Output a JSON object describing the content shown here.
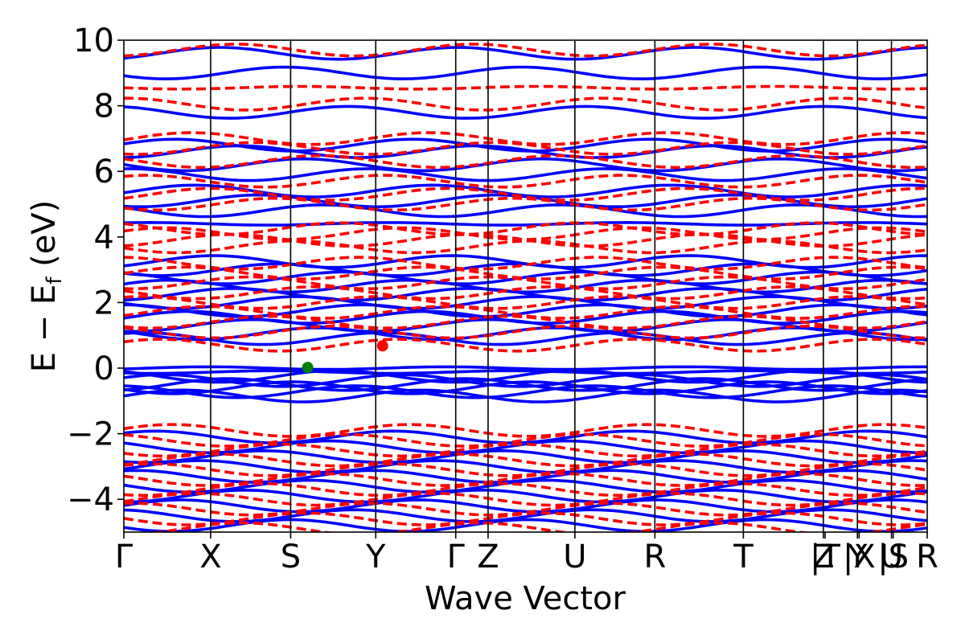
{
  "chart_data": {
    "type": "line",
    "title": "",
    "xlabel": "Wave Vector",
    "ylabel_main": "E − E",
    "ylabel_sub": "f",
    "ylabel_unit": " (eV)",
    "ylim": [
      -5,
      10
    ],
    "yticks": [
      {
        "value": -4,
        "label": "−4"
      },
      {
        "value": -2,
        "label": "−2"
      },
      {
        "value": 0,
        "label": "0"
      },
      {
        "value": 2,
        "label": "2"
      },
      {
        "value": 4,
        "label": "4"
      },
      {
        "value": 6,
        "label": "6"
      },
      {
        "value": 8,
        "label": "8"
      },
      {
        "value": 10,
        "label": "10"
      }
    ],
    "kpath_range": [
      0,
      23.6
    ],
    "high_symmetry_points": [
      {
        "label": "Γ",
        "k": 0.0
      },
      {
        "label": "X",
        "k": 2.55
      },
      {
        "label": "S",
        "k": 4.9
      },
      {
        "label": "Y",
        "k": 7.4
      },
      {
        "label": "Γ",
        "k": 9.75
      },
      {
        "label": "Z",
        "k": 10.7
      },
      {
        "label": "U",
        "k": 13.25
      },
      {
        "label": "R",
        "k": 15.6
      },
      {
        "label": "T",
        "k": 18.2
      },
      {
        "label": "Z",
        "k": 20.55
      },
      {
        "label": "|T",
        "k": 20.6
      },
      {
        "label": "Y",
        "k": 21.55
      },
      {
        "label": "|X",
        "k": 21.6
      },
      {
        "label": "U",
        "k": 22.55
      },
      {
        "label": "|S",
        "k": 22.6
      },
      {
        "label": "R",
        "k": 23.6
      }
    ],
    "vertical_lines": [
      2.55,
      4.9,
      7.4,
      9.75,
      10.7,
      13.25,
      15.6,
      18.2,
      20.55,
      21.55,
      22.55
    ],
    "series": [
      {
        "style": "solid",
        "color": "#0000ff",
        "bands": [
          -0.85,
          -0.72,
          -0.6,
          -0.5,
          -0.38,
          -0.25,
          -0.12,
          0.0,
          0.9,
          1.05,
          1.3,
          1.55,
          1.75,
          2.0,
          2.25,
          2.5,
          2.75,
          3.0,
          3.25,
          4.4,
          4.8,
          5.1,
          5.4,
          5.9,
          6.2,
          6.6,
          6.8,
          7.8,
          9.0,
          9.6,
          -2.1,
          -2.4,
          -2.7,
          -3.0,
          -3.3,
          -3.6,
          -3.9,
          -4.2,
          -4.5,
          -4.8
        ]
      },
      {
        "style": "dashed",
        "color": "#ff0000",
        "bands": [
          0.7,
          1.1,
          1.4,
          1.7,
          2.0,
          2.3,
          2.6,
          2.9,
          3.2,
          3.7,
          3.9,
          4.1,
          4.25,
          5.0,
          5.3,
          5.7,
          6.3,
          6.7,
          7.0,
          8.05,
          8.55,
          9.7,
          -1.9,
          -2.2,
          -2.5,
          -2.8,
          -3.1,
          -3.4,
          -3.7,
          -4.0,
          -4.3,
          -4.6,
          -4.9
        ]
      }
    ],
    "markers": [
      {
        "k": 5.4,
        "energy": 0.02,
        "color": "#008000"
      },
      {
        "k": 7.6,
        "energy": 0.68,
        "color": "#ff0000"
      }
    ]
  }
}
